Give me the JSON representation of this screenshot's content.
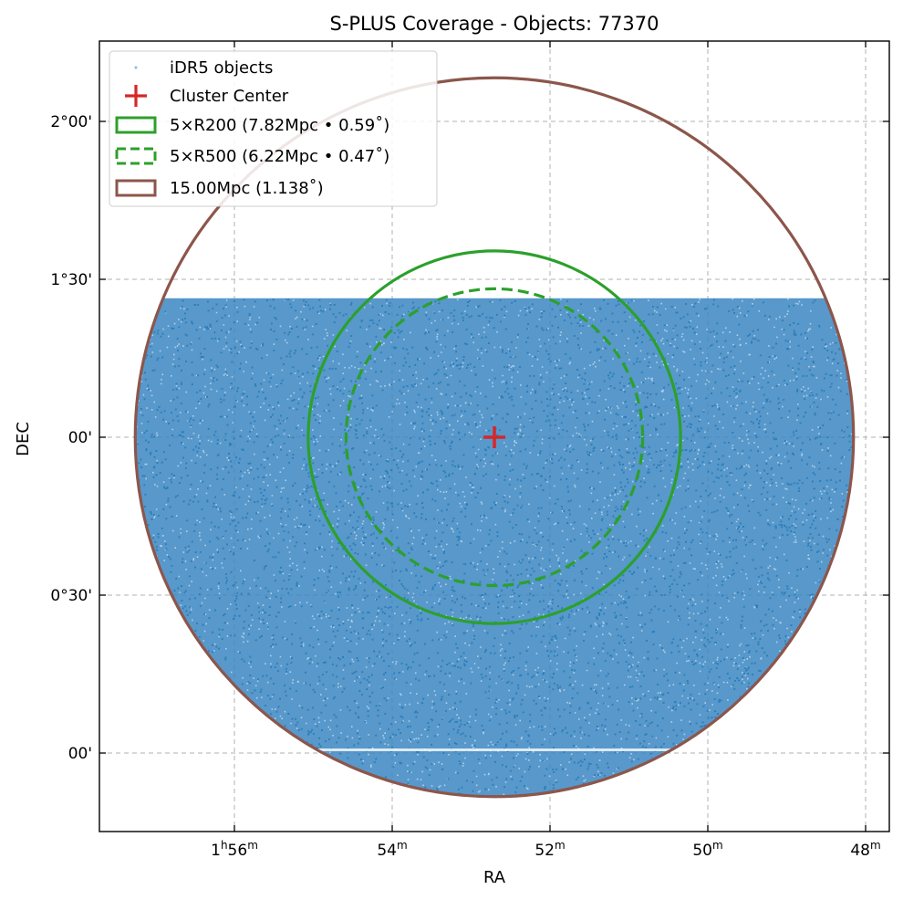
{
  "chart_data": {
    "type": "scatter",
    "title": "S-PLUS Coverage - Objects: 77370",
    "xlabel": "RA",
    "ylabel": "DEC",
    "x_unit": "hours:minutes (RA decreases to the right)",
    "y_unit": "degrees",
    "xlim": [
      "1h57.6m",
      "1h47.6m"
    ],
    "ylim": [
      -0.245,
      2.252
    ],
    "grid": true,
    "x_ticks": [
      {
        "value": "1h56m",
        "label_main": "1",
        "label_sup1": "h",
        "label_mid": "56",
        "label_sup2": "m"
      },
      {
        "value": "1h54m",
        "label_main": "54",
        "label_sup2": "m"
      },
      {
        "value": "1h52m",
        "label_main": "52",
        "label_sup2": "m"
      },
      {
        "value": "1h50m",
        "label_main": "50",
        "label_sup2": "m"
      },
      {
        "value": "1h48m",
        "label_main": "48",
        "label_sup2": "m"
      }
    ],
    "y_ticks": [
      {
        "value": 2.0,
        "label": "2°00'"
      },
      {
        "value": 1.5,
        "label": "1°30'"
      },
      {
        "value": 1.0,
        "label": "00'"
      },
      {
        "value": 0.5,
        "label": "0°30'"
      },
      {
        "value": 0.0,
        "label": "00'"
      }
    ],
    "cluster_center": {
      "ra": "1h52.7m",
      "dec": 1.0
    },
    "objects": {
      "name": "iDR5 objects",
      "count": 77370,
      "color": "#1f77b4",
      "footprint_dec_max": 1.44,
      "footprint": "filled disk of radius 1.138 deg around cluster center, cut at DEC ≈ 1.44"
    },
    "circles": [
      {
        "name": "5×R200 (7.82Mpc • 0.59˚)",
        "radius_deg": 0.59,
        "color": "#2ca02c",
        "style": "solid"
      },
      {
        "name": "5×R500 (6.22Mpc • 0.47˚)",
        "radius_deg": 0.47,
        "color": "#2ca02c",
        "style": "dashed"
      },
      {
        "name": "15.00Mpc (1.138˚)",
        "radius_deg": 1.138,
        "color": "#8c564b",
        "style": "solid"
      }
    ],
    "legend_position": "upper-left",
    "legend": [
      {
        "label": "iDR5 objects",
        "kind": "points",
        "color": "#1f77b4"
      },
      {
        "label": "Cluster Center",
        "kind": "plus",
        "color": "#d62728"
      },
      {
        "label": "5×R200 (7.82Mpc • 0.59˚)",
        "kind": "box-solid",
        "color": "#2ca02c"
      },
      {
        "label": "5×R500 (6.22Mpc • 0.47˚)",
        "kind": "box-dashed",
        "color": "#2ca02c"
      },
      {
        "label": "15.00Mpc (1.138˚)",
        "kind": "box-solid",
        "color": "#8c564b"
      }
    ]
  }
}
